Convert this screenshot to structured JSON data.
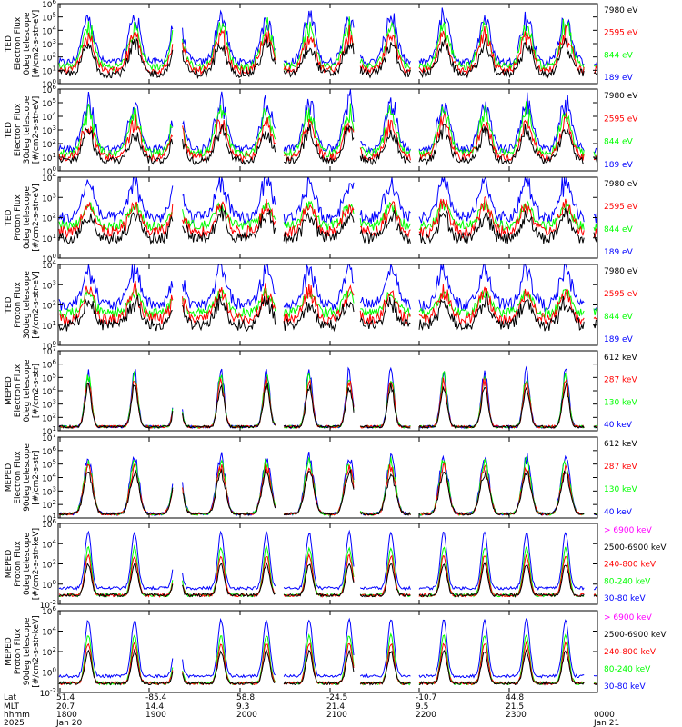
{
  "chart_data": [
    {
      "type": "line",
      "ylabel": [
        "TED",
        "Electron Flux",
        "0deg telescope",
        "[#/cm2-s-str-eV]"
      ],
      "yscale": "log",
      "ylim": [
        1,
        1000000
      ],
      "ytick_labels": [
        "10^0",
        "10^1",
        "10^2",
        "10^3",
        "10^4",
        "10^5",
        "10^6"
      ],
      "series": [
        {
          "name": "7980 eV",
          "color": "#000000"
        },
        {
          "name": "2595 eV",
          "color": "#ff0000"
        },
        {
          "name": "844 eV",
          "color": "#00ff00"
        },
        {
          "name": "189 eV",
          "color": "#0000ff"
        }
      ]
    },
    {
      "type": "line",
      "ylabel": [
        "TED",
        "Electron Flux",
        "30deg telescope",
        "[#/cm2-s-str-eV]"
      ],
      "yscale": "log",
      "ylim": [
        1,
        1000000
      ],
      "ytick_labels": [
        "10^0",
        "10^1",
        "10^2",
        "10^3",
        "10^4",
        "10^5",
        "10^6"
      ],
      "series": [
        {
          "name": "7980 eV",
          "color": "#000000"
        },
        {
          "name": "2595 eV",
          "color": "#ff0000"
        },
        {
          "name": "844 eV",
          "color": "#00ff00"
        },
        {
          "name": "189 eV",
          "color": "#0000ff"
        }
      ]
    },
    {
      "type": "line",
      "ylabel": [
        "TED",
        "Proton Flux",
        "0deg telescope",
        "[#/cm2-s-str-eV]"
      ],
      "yscale": "log",
      "ylim": [
        1,
        10000
      ],
      "ytick_labels": [
        "10^0",
        "10^1",
        "10^2",
        "10^3",
        "10^4"
      ],
      "series": [
        {
          "name": "7980 eV",
          "color": "#000000"
        },
        {
          "name": "2595 eV",
          "color": "#ff0000"
        },
        {
          "name": "844 eV",
          "color": "#00ff00"
        },
        {
          "name": "189 eV",
          "color": "#0000ff"
        }
      ]
    },
    {
      "type": "line",
      "ylabel": [
        "TED",
        "Proton Flux",
        "30deg telescope",
        "[#/cm2-s-str-eV]"
      ],
      "yscale": "log",
      "ylim": [
        1,
        10000
      ],
      "ytick_labels": [
        "10^0",
        "10^1",
        "10^2",
        "10^3",
        "10^4"
      ],
      "series": [
        {
          "name": "7980 eV",
          "color": "#000000"
        },
        {
          "name": "2595 eV",
          "color": "#ff0000"
        },
        {
          "name": "844 eV",
          "color": "#00ff00"
        },
        {
          "name": "189 eV",
          "color": "#0000ff"
        }
      ]
    },
    {
      "type": "line",
      "ylabel": [
        "MEPED",
        "Electron Flux",
        "0deg telescope",
        "[#/cm2-s-str]"
      ],
      "yscale": "log",
      "ylim": [
        10,
        10000000
      ],
      "ytick_labels": [
        "10^1",
        "10^2",
        "10^3",
        "10^4",
        "10^5",
        "10^6",
        "10^7"
      ],
      "series": [
        {
          "name": "612 keV",
          "color": "#000000"
        },
        {
          "name": "287 keV",
          "color": "#ff0000"
        },
        {
          "name": "130 keV",
          "color": "#00ff00"
        },
        {
          "name": "40 keV",
          "color": "#0000ff"
        }
      ]
    },
    {
      "type": "line",
      "ylabel": [
        "MEPED",
        "Electron Flux",
        "90deg telescope",
        "[#/cm2-s-str]"
      ],
      "yscale": "log",
      "ylim": [
        10,
        10000000
      ],
      "ytick_labels": [
        "10^1",
        "10^2",
        "10^3",
        "10^4",
        "10^5",
        "10^6",
        "10^7"
      ],
      "series": [
        {
          "name": "612 keV",
          "color": "#000000"
        },
        {
          "name": "287 keV",
          "color": "#ff0000"
        },
        {
          "name": "130 keV",
          "color": "#00ff00"
        },
        {
          "name": "40 keV",
          "color": "#0000ff"
        }
      ]
    },
    {
      "type": "line",
      "ylabel": [
        "MEPED",
        "Proton Flux",
        "0deg telescope",
        "[#/cm2-s-str-keV]"
      ],
      "yscale": "log",
      "ylim": [
        0.01,
        1000000
      ],
      "ytick_labels": [
        "10^-2",
        "10^0",
        "10^2",
        "10^4",
        "10^6"
      ],
      "series": [
        {
          "name": "> 6900 keV",
          "color": "#ff00ff"
        },
        {
          "name": "2500-6900 keV",
          "color": "#000000"
        },
        {
          "name": "240-800 keV",
          "color": "#ff0000"
        },
        {
          "name": "80-240 keV",
          "color": "#00ff00"
        },
        {
          "name": "30-80 keV",
          "color": "#0000ff"
        }
      ]
    },
    {
      "type": "line",
      "ylabel": [
        "MEPED",
        "Proton Flux",
        "90deg telescope",
        "[#/cm2-s-str-keV]"
      ],
      "yscale": "log",
      "ylim": [
        0.01,
        1000000
      ],
      "ytick_labels": [
        "10^-2",
        "10^0",
        "10^2",
        "10^4",
        "10^6"
      ],
      "series": [
        {
          "name": "> 6900 keV",
          "color": "#ff00ff"
        },
        {
          "name": "2500-6900 keV",
          "color": "#000000"
        },
        {
          "name": "240-800 keV",
          "color": "#ff0000"
        },
        {
          "name": "80-240 keV",
          "color": "#00ff00"
        },
        {
          "name": "30-80 keV",
          "color": "#0000ff"
        }
      ]
    }
  ],
  "x_axis": {
    "row_labels": [
      "Lat",
      "MLT",
      "hhmm",
      "2025"
    ],
    "ticks": [
      {
        "lat": "51.4",
        "mlt": "20.7",
        "hhmm": "1800",
        "date": "Jan 20"
      },
      {
        "lat": "-85.4",
        "mlt": "14.4",
        "hhmm": "1900",
        "date": ""
      },
      {
        "lat": "58.8",
        "mlt": "9.3",
        "hhmm": "2000",
        "date": ""
      },
      {
        "lat": "-24.5",
        "mlt": "21.4",
        "hhmm": "2100",
        "date": ""
      },
      {
        "lat": "-10.7",
        "mlt": "9.5",
        "hhmm": "2200",
        "date": ""
      },
      {
        "lat": "44.8",
        "mlt": "21.5",
        "hhmm": "2300",
        "date": ""
      },
      {
        "lat": "",
        "mlt": "",
        "hhmm": "0000",
        "date": "Jan 21"
      }
    ]
  }
}
